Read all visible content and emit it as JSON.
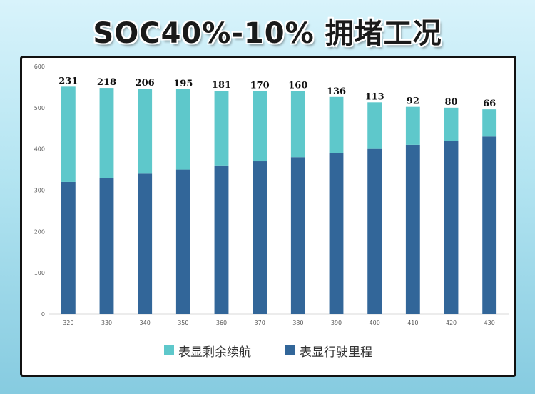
{
  "title": "SOC40%-10% 拥堵工况",
  "colors": {
    "remaining": "#5ec8cb",
    "driven": "#326699"
  },
  "chart_data": {
    "type": "bar",
    "stacked": true,
    "categories": [
      "320",
      "330",
      "340",
      "350",
      "360",
      "370",
      "380",
      "390",
      "400",
      "410",
      "420",
      "430"
    ],
    "series": [
      {
        "name": "表显行驶里程",
        "color": "#326699",
        "values": [
          320,
          330,
          340,
          350,
          360,
          370,
          380,
          390,
          400,
          410,
          420,
          430
        ]
      },
      {
        "name": "表显剩余续航",
        "color": "#5ec8cb",
        "values": [
          231,
          218,
          206,
          195,
          181,
          170,
          160,
          136,
          113,
          92,
          80,
          66
        ]
      }
    ],
    "data_labels": [
      231,
      218,
      206,
      195,
      181,
      170,
      160,
      136,
      113,
      92,
      80,
      66
    ],
    "ylim": [
      0,
      600
    ],
    "yticks": [
      0,
      100,
      200,
      300,
      400,
      500,
      600
    ],
    "legend": [
      "表显剩余续航",
      "表显行驶里程"
    ],
    "legend_position": "bottom"
  }
}
